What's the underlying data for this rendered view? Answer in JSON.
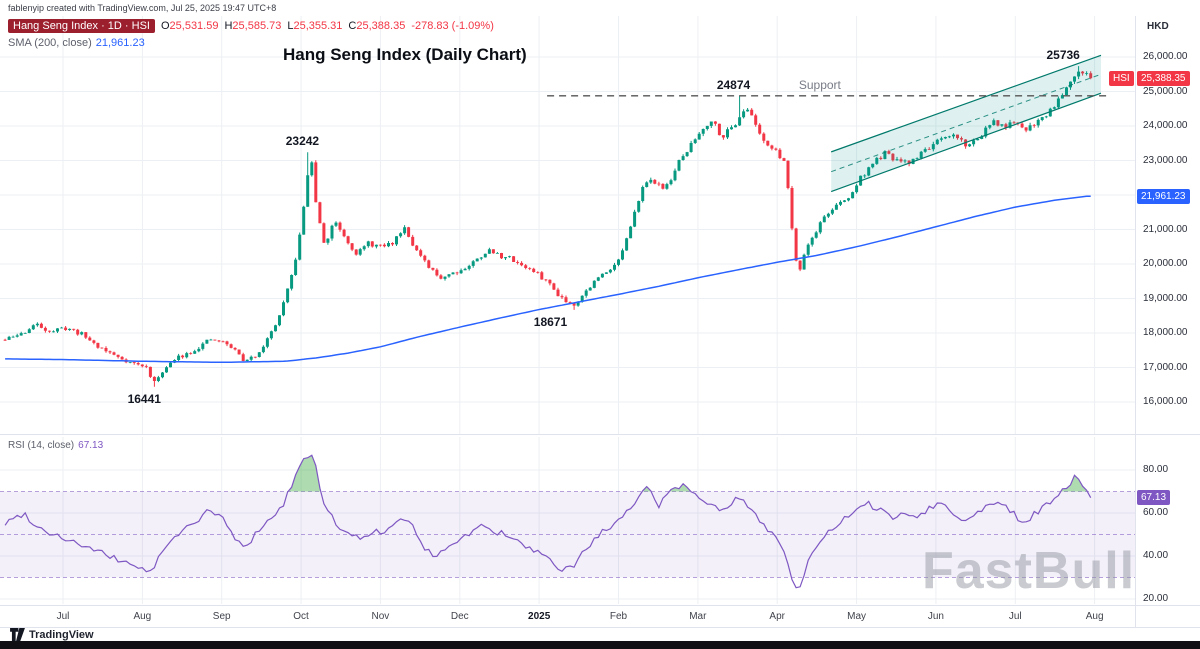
{
  "attribution": "fablenyip created with TradingView.com, Jul 25, 2025 19:47 UTC+8",
  "watermark": "FastBull",
  "footer_logo": "TradingView",
  "legend": {
    "symbol": "Hang Seng Index · 1D · HSI",
    "ohlc": [
      {
        "k": "O",
        "v": "25,531.59"
      },
      {
        "k": "H",
        "v": "25,585.73"
      },
      {
        "k": "L",
        "v": "25,355.31"
      },
      {
        "k": "C",
        "v": "25,388.35"
      }
    ],
    "change": "-278.83 (-1.09%)",
    "sma_label": "SMA (200, close)",
    "sma_value": "21,961.23"
  },
  "price_badges": {
    "hsi_tag": "HSI",
    "hsi_value": "25,388.35",
    "sma_value": "21,961.23",
    "rsi_value": "67.13"
  },
  "colors": {
    "up": "#089981",
    "down": "#f23645",
    "sma": "#2962ff",
    "rsi": "#7e57c2",
    "channel_stroke": "#00796b",
    "channel_fill": "rgba(0,150,136,0.13)",
    "support": "#555555",
    "grid": "#eceff3",
    "rsi_band": "rgba(126,87,194,0.09)",
    "rsi_level": "rgba(126,87,194,0.55)",
    "overbought_fill": "rgba(76,175,80,0.45)"
  },
  "chart_data": [
    {
      "type": "candlestick",
      "title": "Hang Seng Index (Daily Chart)",
      "currency": "HKD",
      "x_ticks": [
        "Jul",
        "Aug",
        "Sep",
        "Oct",
        "Nov",
        "Dec",
        "2025",
        "Feb",
        "Mar",
        "Apr",
        "May",
        "Jun",
        "Jul",
        "Aug"
      ],
      "y_ticks": [
        {
          "v": 26000,
          "label": "26,000.00"
        },
        {
          "v": 25000,
          "label": "25,000.00"
        },
        {
          "v": 24000,
          "label": "24,000.00"
        },
        {
          "v": 23000,
          "label": "23,000.00"
        },
        {
          "v": 22000,
          "label": "22,000.00"
        },
        {
          "v": 21000,
          "label": "21,000.00"
        },
        {
          "v": 20000,
          "label": "20,000.00"
        },
        {
          "v": 19000,
          "label": "19,000.00"
        },
        {
          "v": 18000,
          "label": "18,000.00"
        },
        {
          "v": 17000,
          "label": "17,000.00"
        },
        {
          "v": 16000,
          "label": "16,000.00"
        }
      ],
      "ylim": [
        15100,
        27190
      ],
      "last": {
        "open": 25531.59,
        "high": 25585.73,
        "low": 25355.31,
        "close": 25388.35
      },
      "sma_last": 21961.23,
      "support": {
        "value": 24874,
        "label": "Support",
        "from": 6.1,
        "to": 13.16,
        "label_u": 9.55
      },
      "channel": {
        "u1": 9.68,
        "u2": 13.08,
        "lower": [
          22100,
          24950
        ],
        "upper": [
          23250,
          26050
        ]
      },
      "annotations": [
        {
          "label": "16441",
          "u": 1.15,
          "value": 16441,
          "placement": "below",
          "dx": -10
        },
        {
          "label": "23242",
          "u": 3.08,
          "value": 23242,
          "placement": "above",
          "dx": -5
        },
        {
          "label": "18671",
          "u": 6.42,
          "value": 18671,
          "placement": "below",
          "dx": -22
        },
        {
          "label": "24874",
          "u": 8.55,
          "value": 24874,
          "placement": "above",
          "dx": -8
        },
        {
          "label": "25736",
          "u": 12.78,
          "value": 25736,
          "placement": "above",
          "dx": -14
        }
      ],
      "price_anchors": [
        [
          -0.73,
          17800
        ],
        [
          -0.5,
          18000
        ],
        [
          -0.35,
          18250
        ],
        [
          -0.15,
          18050
        ],
        [
          0.05,
          18150
        ],
        [
          0.25,
          17950
        ],
        [
          0.45,
          17600
        ],
        [
          0.65,
          17350
        ],
        [
          0.85,
          17150
        ],
        [
          1.05,
          17000
        ],
        [
          1.15,
          16550
        ],
        [
          1.25,
          16900
        ],
        [
          1.45,
          17300
        ],
        [
          1.65,
          17500
        ],
        [
          1.85,
          17800
        ],
        [
          2.0,
          17750
        ],
        [
          2.15,
          17550
        ],
        [
          2.3,
          17150
        ],
        [
          2.45,
          17400
        ],
        [
          2.6,
          17900
        ],
        [
          2.75,
          18600
        ],
        [
          2.9,
          19800
        ],
        [
          3.0,
          21000
        ],
        [
          3.08,
          22600
        ],
        [
          3.14,
          22900
        ],
        [
          3.2,
          21500
        ],
        [
          3.3,
          20500
        ],
        [
          3.42,
          21300
        ],
        [
          3.55,
          20800
        ],
        [
          3.7,
          20300
        ],
        [
          3.85,
          20600
        ],
        [
          4.0,
          20500
        ],
        [
          4.15,
          20600
        ],
        [
          4.3,
          21100
        ],
        [
          4.45,
          20400
        ],
        [
          4.6,
          19900
        ],
        [
          4.75,
          19600
        ],
        [
          4.9,
          19750
        ],
        [
          5.05,
          19850
        ],
        [
          5.2,
          20100
        ],
        [
          5.35,
          20400
        ],
        [
          5.5,
          20250
        ],
        [
          5.65,
          20150
        ],
        [
          5.8,
          19950
        ],
        [
          5.95,
          19750
        ],
        [
          6.1,
          19500
        ],
        [
          6.25,
          19100
        ],
        [
          6.42,
          18800
        ],
        [
          6.55,
          19100
        ],
        [
          6.7,
          19500
        ],
        [
          6.85,
          19800
        ],
        [
          7.0,
          20100
        ],
        [
          7.15,
          21000
        ],
        [
          7.3,
          22300
        ],
        [
          7.45,
          22400
        ],
        [
          7.6,
          22200
        ],
        [
          7.75,
          22900
        ],
        [
          7.9,
          23400
        ],
        [
          8.05,
          23900
        ],
        [
          8.18,
          24200
        ],
        [
          8.3,
          23700
        ],
        [
          8.45,
          24000
        ],
        [
          8.58,
          24500
        ],
        [
          8.68,
          24300
        ],
        [
          8.8,
          23700
        ],
        [
          8.95,
          23300
        ],
        [
          9.1,
          23000
        ],
        [
          9.22,
          20300
        ],
        [
          9.28,
          19800
        ],
        [
          9.35,
          20400
        ],
        [
          9.45,
          20800
        ],
        [
          9.6,
          21400
        ],
        [
          9.75,
          21700
        ],
        [
          9.9,
          21900
        ],
        [
          10.05,
          22500
        ],
        [
          10.2,
          22900
        ],
        [
          10.35,
          23200
        ],
        [
          10.5,
          23000
        ],
        [
          10.65,
          22900
        ],
        [
          10.8,
          23200
        ],
        [
          10.95,
          23450
        ],
        [
          11.1,
          23600
        ],
        [
          11.25,
          23750
        ],
        [
          11.4,
          23400
        ],
        [
          11.55,
          23700
        ],
        [
          11.7,
          24100
        ],
        [
          11.85,
          24000
        ],
        [
          12.0,
          24050
        ],
        [
          12.12,
          23900
        ],
        [
          12.25,
          24100
        ],
        [
          12.4,
          24350
        ],
        [
          12.55,
          24800
        ],
        [
          12.68,
          25300
        ],
        [
          12.8,
          25650
        ],
        [
          12.9,
          25500
        ],
        [
          12.95,
          25390
        ]
      ],
      "sma_anchors": [
        [
          -0.73,
          17250
        ],
        [
          0,
          17230
        ],
        [
          1,
          17180
        ],
        [
          2,
          17150
        ],
        [
          2.8,
          17180
        ],
        [
          3.2,
          17280
        ],
        [
          3.6,
          17420
        ],
        [
          4,
          17600
        ],
        [
          4.5,
          17900
        ],
        [
          5,
          18170
        ],
        [
          5.5,
          18430
        ],
        [
          6,
          18680
        ],
        [
          6.5,
          18900
        ],
        [
          7,
          19120
        ],
        [
          7.5,
          19350
        ],
        [
          8,
          19600
        ],
        [
          8.5,
          19830
        ],
        [
          9,
          20050
        ],
        [
          9.5,
          20250
        ],
        [
          10,
          20500
        ],
        [
          10.5,
          20780
        ],
        [
          11,
          21080
        ],
        [
          11.5,
          21380
        ],
        [
          12,
          21650
        ],
        [
          12.5,
          21850
        ],
        [
          12.9,
          21961.23
        ]
      ]
    },
    {
      "type": "line",
      "name": "RSI (14, close)",
      "current": 67.13,
      "current_label": "67.13",
      "y_ticks": [
        {
          "v": 80,
          "label": "80.00"
        },
        {
          "v": 60,
          "label": "60.00"
        },
        {
          "v": 40,
          "label": "40.00"
        },
        {
          "v": 20,
          "label": "20.00"
        }
      ],
      "levels": {
        "overbought": 70,
        "middle": 50,
        "oversold": 30
      },
      "ylim": [
        15,
        95
      ],
      "anchors": [
        [
          -0.73,
          55
        ],
        [
          -0.5,
          60
        ],
        [
          -0.3,
          53
        ],
        [
          -0.1,
          50
        ],
        [
          0.1,
          47
        ],
        [
          0.3,
          44
        ],
        [
          0.5,
          41
        ],
        [
          0.7,
          38
        ],
        [
          0.9,
          36
        ],
        [
          1.1,
          32
        ],
        [
          1.25,
          42
        ],
        [
          1.45,
          50
        ],
        [
          1.65,
          56
        ],
        [
          1.85,
          61
        ],
        [
          2.0,
          58
        ],
        [
          2.15,
          49
        ],
        [
          2.3,
          43
        ],
        [
          2.45,
          52
        ],
        [
          2.6,
          57
        ],
        [
          2.75,
          62
        ],
        [
          2.9,
          75
        ],
        [
          3.0,
          83
        ],
        [
          3.1,
          88
        ],
        [
          3.18,
          82
        ],
        [
          3.3,
          62
        ],
        [
          3.45,
          55
        ],
        [
          3.6,
          50
        ],
        [
          3.75,
          48
        ],
        [
          3.9,
          52
        ],
        [
          4.05,
          50
        ],
        [
          4.2,
          55
        ],
        [
          4.35,
          58
        ],
        [
          4.5,
          46
        ],
        [
          4.65,
          40
        ],
        [
          4.8,
          43
        ],
        [
          4.95,
          47
        ],
        [
          5.1,
          50
        ],
        [
          5.25,
          54
        ],
        [
          5.4,
          52
        ],
        [
          5.55,
          50
        ],
        [
          5.7,
          47
        ],
        [
          5.85,
          44
        ],
        [
          6.0,
          41
        ],
        [
          6.15,
          37
        ],
        [
          6.3,
          33
        ],
        [
          6.45,
          36
        ],
        [
          6.6,
          44
        ],
        [
          6.75,
          50
        ],
        [
          6.9,
          53
        ],
        [
          7.05,
          57
        ],
        [
          7.2,
          65
        ],
        [
          7.35,
          74
        ],
        [
          7.5,
          63
        ],
        [
          7.65,
          71
        ],
        [
          7.8,
          73
        ],
        [
          7.95,
          70
        ],
        [
          8.1,
          66
        ],
        [
          8.3,
          60
        ],
        [
          8.5,
          67
        ],
        [
          8.65,
          63
        ],
        [
          8.8,
          56
        ],
        [
          8.95,
          50
        ],
        [
          9.1,
          42
        ],
        [
          9.2,
          27
        ],
        [
          9.28,
          24
        ],
        [
          9.4,
          38
        ],
        [
          9.55,
          47
        ],
        [
          9.7,
          53
        ],
        [
          9.85,
          57
        ],
        [
          10.0,
          61
        ],
        [
          10.15,
          64
        ],
        [
          10.3,
          62
        ],
        [
          10.45,
          57
        ],
        [
          10.6,
          61
        ],
        [
          10.75,
          58
        ],
        [
          10.9,
          62
        ],
        [
          11.05,
          65
        ],
        [
          11.2,
          61
        ],
        [
          11.35,
          55
        ],
        [
          11.5,
          60
        ],
        [
          11.65,
          64
        ],
        [
          11.8,
          66
        ],
        [
          11.95,
          61
        ],
        [
          12.1,
          55
        ],
        [
          12.25,
          60
        ],
        [
          12.4,
          64
        ],
        [
          12.5,
          66
        ],
        [
          12.65,
          72
        ],
        [
          12.78,
          78
        ],
        [
          12.88,
          71
        ],
        [
          12.95,
          67.13
        ]
      ]
    }
  ]
}
